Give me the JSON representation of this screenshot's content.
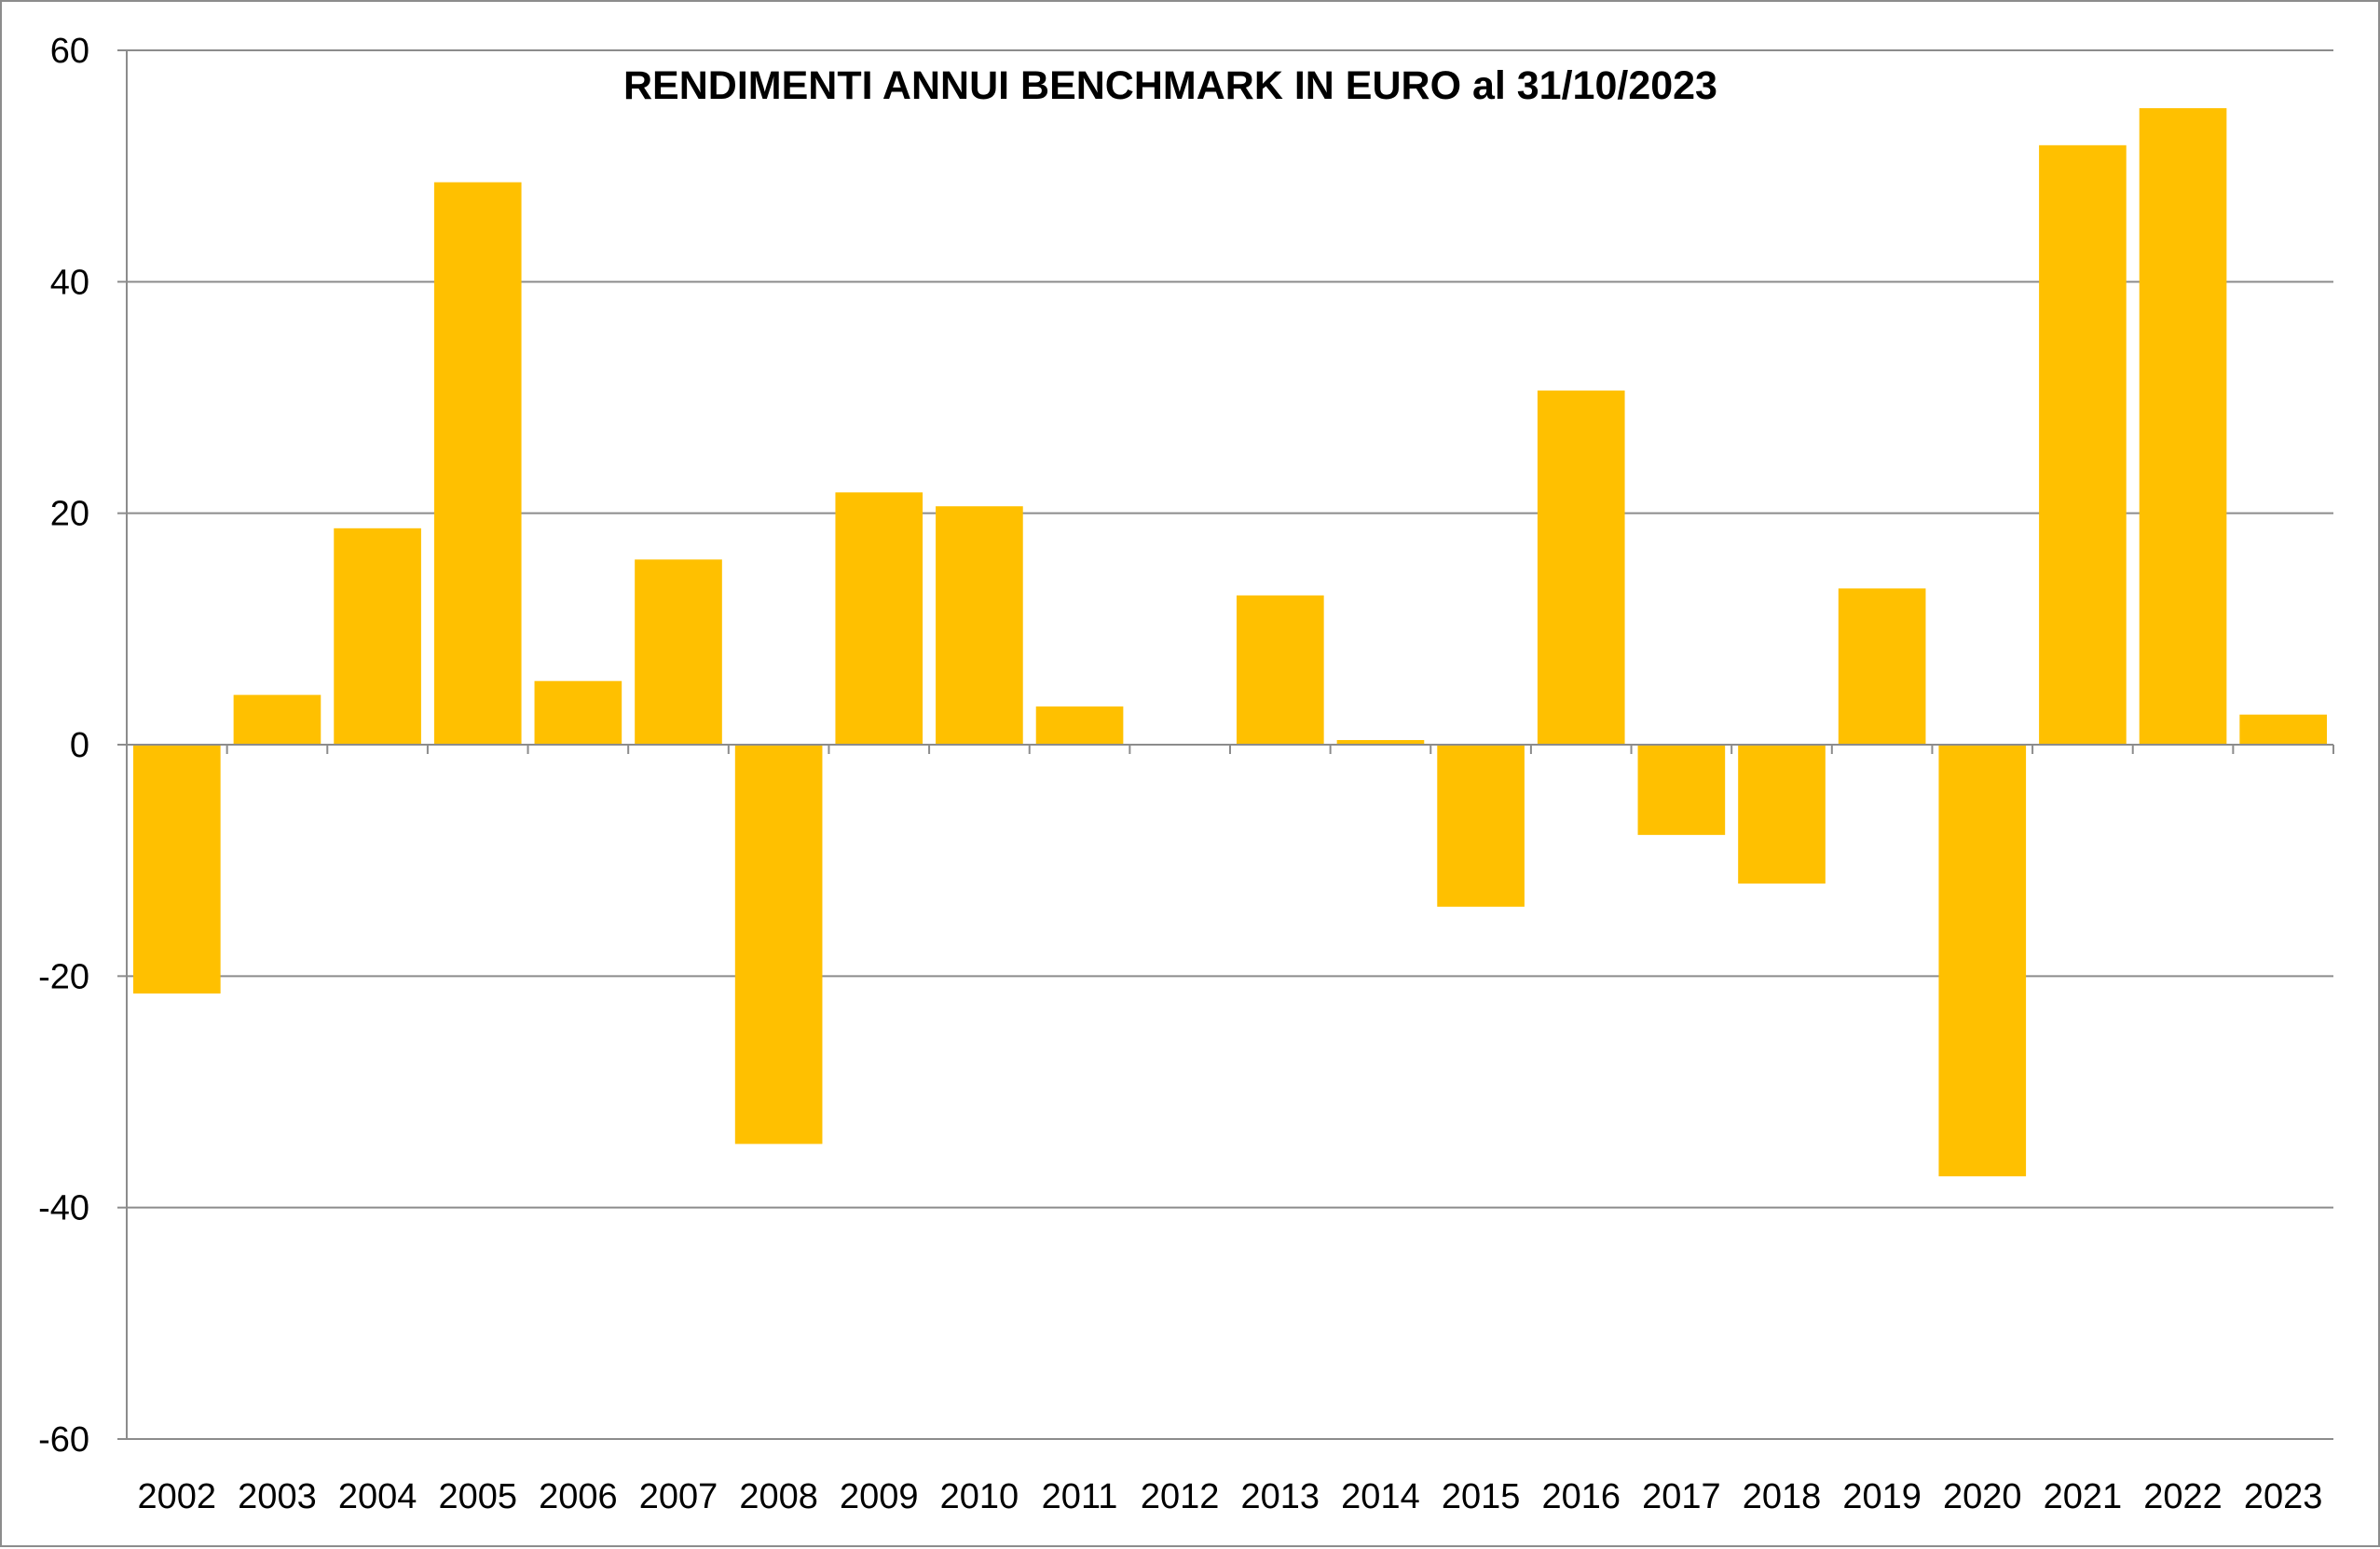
{
  "chart_data": {
    "type": "bar",
    "title": "RENDIMENTI ANNUI BENCHMARK IN EURO al 31/10/2023",
    "xlabel": "",
    "ylabel": "",
    "ylim": [
      -60,
      60
    ],
    "yticks": [
      60,
      40,
      20,
      0,
      -20,
      -40,
      -60
    ],
    "grid": true,
    "legend": "none",
    "bar_color": "#FFC000",
    "grid_color": "#8c8c8c",
    "categories": [
      "2002",
      "2003",
      "2004",
      "2005",
      "2006",
      "2007",
      "2008",
      "2009",
      "2010",
      "2011",
      "2012",
      "2013",
      "2014",
      "2015",
      "2016",
      "2017",
      "2018",
      "2019",
      "2020",
      "2021",
      "2022",
      "2023"
    ],
    "values": [
      -21.5,
      4.3,
      18.7,
      48.6,
      5.5,
      16.0,
      -34.5,
      21.8,
      20.6,
      3.3,
      0.0,
      12.9,
      0.4,
      -14.0,
      30.6,
      -7.8,
      -12.0,
      13.5,
      -37.3,
      51.8,
      55.0,
      2.6
    ]
  }
}
